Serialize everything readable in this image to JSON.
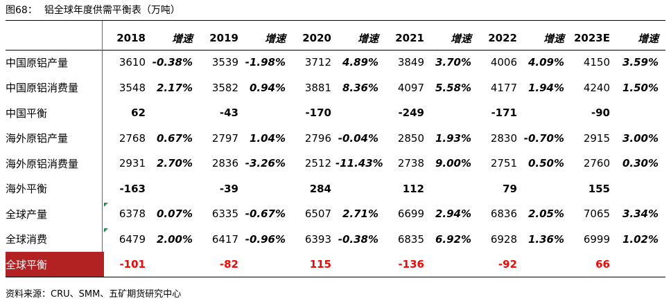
{
  "figure": {
    "number": "图68：",
    "title": "铝全球年度供需平衡表（万吨）"
  },
  "table": {
    "header": [
      "2018",
      "增速",
      "2019",
      "增速",
      "2020",
      "增速",
      "2021",
      "增速",
      "2022",
      "增速",
      "2023E",
      "增速"
    ],
    "rows": [
      {
        "label": "中国原铝产量",
        "cells": [
          "3610",
          "-0.38%",
          "3539",
          "-1.98%",
          "3712",
          "4.89%",
          "3849",
          "3.70%",
          "4006",
          "4.09%",
          "4150",
          "3.59%"
        ]
      },
      {
        "label": "中国原铝消费量",
        "cells": [
          "3548",
          "2.17%",
          "3582",
          "0.94%",
          "3881",
          "8.36%",
          "4097",
          "5.58%",
          "4177",
          "1.94%",
          "4240",
          "1.50%"
        ]
      },
      {
        "label": "中国平衡",
        "cells": [
          "62",
          "",
          "-43",
          "",
          "-170",
          "",
          "-249",
          "",
          "-171",
          "",
          "-90",
          ""
        ]
      },
      {
        "label": "海外原铝产量",
        "cells": [
          "2768",
          "0.67%",
          "2797",
          "1.04%",
          "2796",
          "-0.04%",
          "2850",
          "1.93%",
          "2830",
          "-0.70%",
          "2915",
          "3.00%"
        ]
      },
      {
        "label": "海外原铝消费量",
        "cells": [
          "2931",
          "2.70%",
          "2836",
          "-3.26%",
          "2512",
          "-11.43%",
          "2738",
          "9.00%",
          "2751",
          "0.50%",
          "2760",
          "0.30%"
        ]
      },
      {
        "label": "海外平衡",
        "cells": [
          "-163",
          "",
          "-39",
          "",
          "284",
          "",
          "112",
          "",
          "79",
          "",
          "155",
          ""
        ]
      },
      {
        "label": "全球产量",
        "cells": [
          "6378",
          "0.07%",
          "6335",
          "-0.67%",
          "6507",
          "2.71%",
          "6699",
          "2.94%",
          "6836",
          "2.05%",
          "7065",
          "3.34%"
        ]
      },
      {
        "label": "全球消费",
        "cells": [
          "6479",
          "2.00%",
          "6417",
          "-0.96%",
          "6393",
          "-0.38%",
          "6835",
          "6.92%",
          "6928",
          "1.36%",
          "6999",
          "1.02%"
        ]
      },
      {
        "label": "全球平衡",
        "cells": [
          "-101",
          "",
          "-82",
          "",
          "115",
          "",
          "-136",
          "",
          "-92",
          "",
          "66",
          ""
        ]
      }
    ]
  },
  "source": "资料来源：CRU、SMM、五矿期货研究中心",
  "colors": {
    "highlight_label_bg": "#b22222",
    "highlight_value": "#ff0000",
    "separator": "#2e8b57"
  }
}
